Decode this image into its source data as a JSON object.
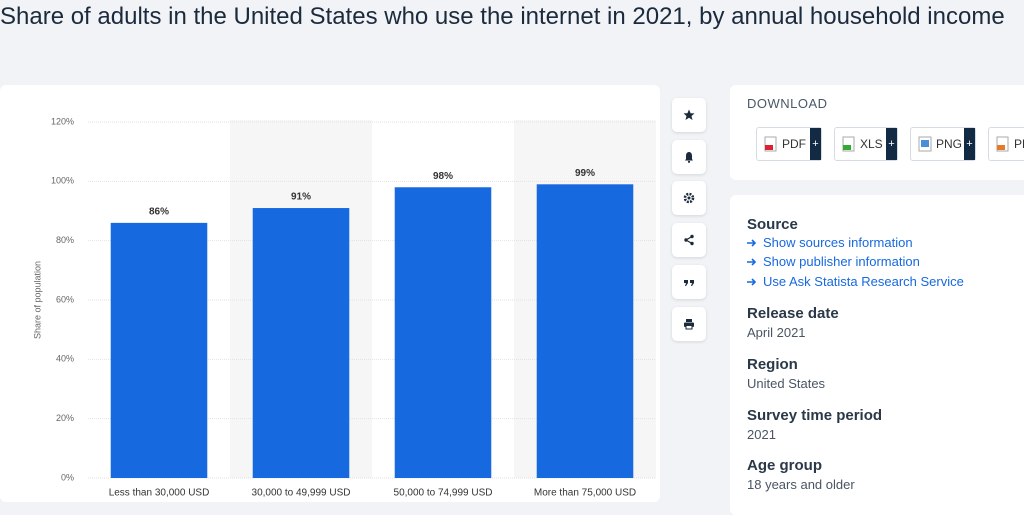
{
  "title": "Share of adults in the United States who use the internet in 2021, by annual household income",
  "chart_data": {
    "type": "bar",
    "ylabel": "Share of population",
    "categories": [
      "Less than 30,000 USD",
      "30,000 to 49,999 USD",
      "50,000 to 74,999 USD",
      "More than 75,000 USD"
    ],
    "values": [
      86,
      91,
      98,
      99
    ],
    "value_labels": [
      "86%",
      "91%",
      "98%",
      "99%"
    ],
    "color": "#1769e0",
    "ylim": [
      0,
      120
    ],
    "yticks": [
      {
        "value": 0,
        "label": "0%"
      },
      {
        "value": 20,
        "label": "20%"
      },
      {
        "value": 40,
        "label": "40%"
      },
      {
        "value": 60,
        "label": "60%"
      },
      {
        "value": 80,
        "label": "80%"
      },
      {
        "value": 100,
        "label": "100%"
      },
      {
        "value": 120,
        "label": "120%"
      }
    ],
    "grid": true
  },
  "download": {
    "heading": "DOWNLOAD",
    "formats": [
      "PDF",
      "XLS",
      "PNG",
      "PPT"
    ]
  },
  "source": {
    "heading": "Source",
    "links": [
      "Show sources information",
      "Show publisher information",
      "Use Ask Statista Research Service"
    ]
  },
  "details": [
    {
      "heading": "Release date",
      "value": "April 2021"
    },
    {
      "heading": "Region",
      "value": "United States"
    },
    {
      "heading": "Survey time period",
      "value": "2021"
    },
    {
      "heading": "Age group",
      "value": "18 years and older"
    }
  ]
}
